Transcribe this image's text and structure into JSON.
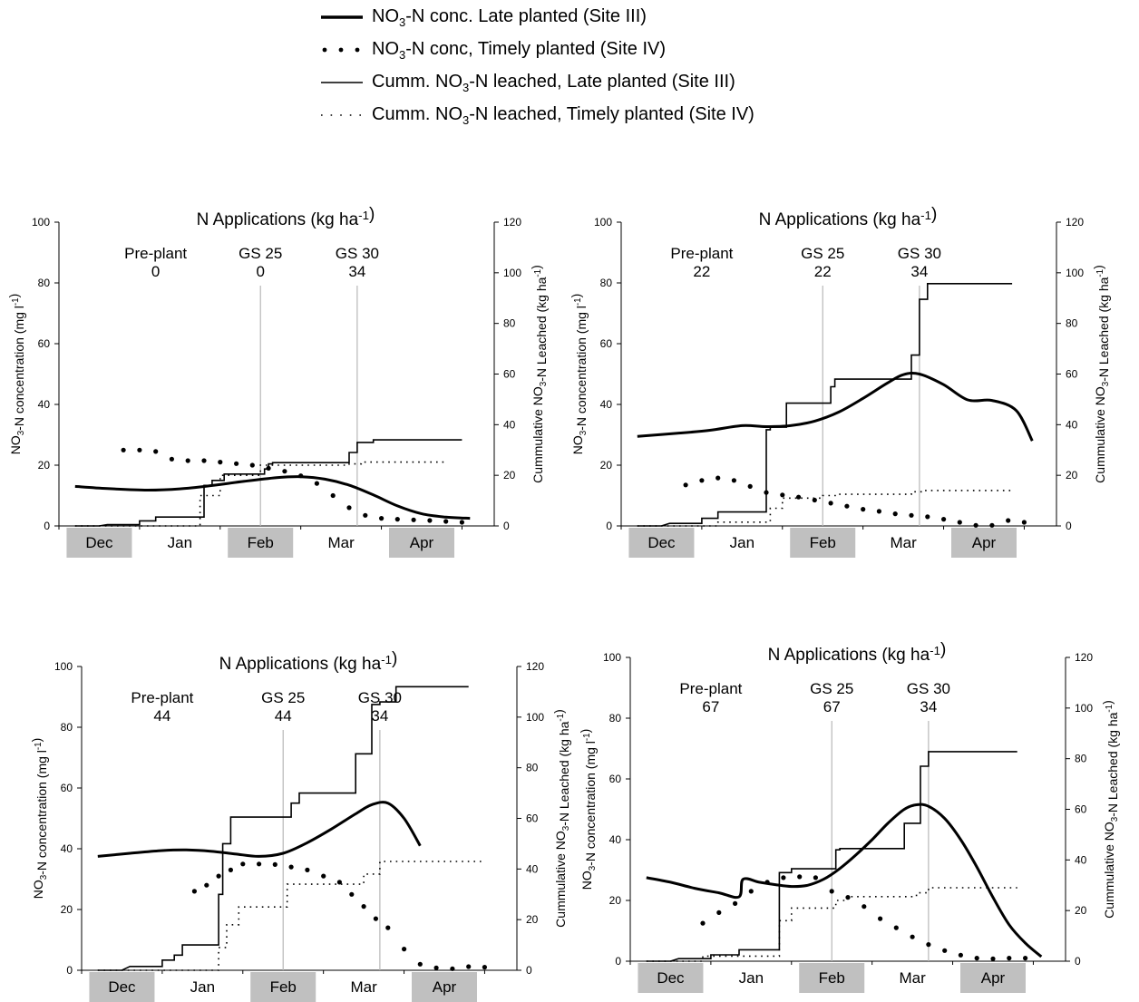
{
  "legend": {
    "items": [
      {
        "key": "conc_late",
        "label": "NO3-N conc. Late planted (Site III)",
        "style": "thick"
      },
      {
        "key": "conc_timely",
        "label": "NO3-N conc, Timely planted (Site IV)",
        "style": "bigdots"
      },
      {
        "key": "cumm_late",
        "label": "Cumm. NO3-N leached, Late planted (Site III)",
        "style": "thin"
      },
      {
        "key": "cumm_timely",
        "label": "Cumm. NO3-N leached, Timely planted (Site IV)",
        "style": "smalldots"
      }
    ]
  },
  "axis_text": {
    "y_left": "NO3-N concentration (mg l-1)",
    "y_right": "Cummulative NO3-N Leached (kg ha-1)"
  },
  "chart_data": [
    {
      "type": "line",
      "title": "N Applications (kg ha-1)",
      "months": [
        "Dec",
        "Jan",
        "Feb",
        "Mar",
        "Apr"
      ],
      "left_ylim": [
        0,
        100
      ],
      "left_ticks": [
        0,
        20,
        40,
        60,
        80,
        100
      ],
      "right_ylim": [
        0,
        120
      ],
      "right_ticks": [
        0,
        20,
        40,
        60,
        80,
        100,
        120
      ],
      "applications": [
        {
          "name": "Pre-plant",
          "amount": "0",
          "x": 0.7,
          "line": false
        },
        {
          "name": "GS 25",
          "amount": "0",
          "x": 2.0,
          "line": true
        },
        {
          "name": "GS 30",
          "amount": "34",
          "x": 3.2,
          "line": true
        }
      ],
      "series": [
        {
          "key": "conc_late",
          "axis": "left",
          "style": "thick",
          "x": [
            -0.3,
            0.1,
            0.6,
            1.0,
            1.4,
            1.8,
            2.2,
            2.5,
            2.8,
            3.1,
            3.4,
            3.7,
            4.0,
            4.3,
            4.6
          ],
          "y": [
            13,
            12.3,
            11.8,
            12.2,
            13.3,
            14.7,
            15.9,
            16.2,
            15.4,
            13.4,
            10.2,
            6.6,
            4.0,
            2.9,
            2.5
          ]
        },
        {
          "key": "conc_timely",
          "axis": "left",
          "style": "bigdots",
          "x": [
            0.3,
            0.5,
            0.7,
            0.9,
            1.1,
            1.3,
            1.5,
            1.7,
            1.9,
            2.1,
            2.3,
            2.5,
            2.7,
            2.9,
            3.1,
            3.3,
            3.5,
            3.7,
            3.9,
            4.1,
            4.3,
            4.5
          ],
          "y": [
            25,
            25,
            24.5,
            22,
            21.5,
            21.5,
            21,
            20.5,
            20,
            19,
            18,
            16.5,
            14,
            10,
            6,
            3.5,
            2.5,
            2.2,
            2,
            1.8,
            1.5,
            1.2
          ]
        },
        {
          "key": "cumm_late",
          "axis": "right",
          "style": "thin",
          "x": [
            -0.3,
            0.0,
            0.1,
            0.5,
            0.5,
            0.7,
            0.7,
            1.3,
            1.3,
            1.4,
            1.4,
            1.55,
            1.55,
            2.05,
            2.05,
            2.1,
            2.1,
            2.15,
            2.15,
            3.1,
            3.1,
            3.2,
            3.2,
            3.4,
            3.4,
            4.5
          ],
          "y": [
            0,
            0,
            0.5,
            0.5,
            2,
            2,
            3.5,
            3.5,
            16,
            16,
            18,
            18,
            20.5,
            20.5,
            22.5,
            22.5,
            24.5,
            24.5,
            25,
            25,
            29,
            29,
            33,
            33,
            34,
            34
          ]
        },
        {
          "key": "cumm_timely",
          "axis": "right",
          "style": "smalldots",
          "x": [
            -0.3,
            1.25,
            1.25,
            1.5,
            1.5,
            2.0,
            2.0,
            3.1,
            3.1,
            3.25,
            3.25,
            4.3
          ],
          "y": [
            0,
            0,
            12,
            12,
            20,
            20,
            24,
            24,
            24.5,
            24.5,
            25.2,
            25.2
          ]
        }
      ]
    },
    {
      "type": "line",
      "title": "N Applications (kg ha-1)",
      "months": [
        "Dec",
        "Jan",
        "Feb",
        "Mar",
        "Apr"
      ],
      "left_ylim": [
        0,
        100
      ],
      "left_ticks": [
        0,
        20,
        40,
        60,
        80,
        100
      ],
      "right_ylim": [
        0,
        120
      ],
      "right_ticks": [
        0,
        20,
        40,
        60,
        80,
        100,
        120
      ],
      "applications": [
        {
          "name": "Pre-plant",
          "amount": "22",
          "x": 0.5,
          "line": false
        },
        {
          "name": "GS 25",
          "amount": "22",
          "x": 2.0,
          "line": true
        },
        {
          "name": "GS 30",
          "amount": "34",
          "x": 3.2,
          "line": true
        }
      ],
      "series": [
        {
          "key": "conc_late",
          "axis": "left",
          "style": "thick",
          "x": [
            -0.3,
            0.2,
            0.6,
            1.0,
            1.3,
            1.6,
            1.9,
            2.2,
            2.5,
            2.8,
            3.0,
            3.2,
            3.5,
            3.8,
            4.1,
            4.4,
            4.6
          ],
          "y": [
            29.5,
            30.5,
            31.5,
            33,
            32.7,
            33,
            34.5,
            37.5,
            42,
            47,
            49.8,
            50,
            46.5,
            41.5,
            41.3,
            38,
            28
          ]
        },
        {
          "key": "conc_timely",
          "axis": "left",
          "style": "bigdots",
          "x": [
            0.3,
            0.5,
            0.7,
            0.9,
            1.1,
            1.3,
            1.5,
            1.7,
            1.9,
            2.1,
            2.3,
            2.5,
            2.7,
            2.9,
            3.1,
            3.3,
            3.5,
            3.7,
            3.9,
            4.1,
            4.3,
            4.5
          ],
          "y": [
            13.5,
            15,
            15.8,
            15,
            13,
            11,
            10.2,
            9.5,
            8.5,
            7.5,
            6.5,
            5.5,
            4.8,
            4,
            3.5,
            3,
            2.2,
            1.2,
            0.2,
            0.2,
            1.8,
            1.2
          ]
        },
        {
          "key": "cumm_late",
          "axis": "right",
          "style": "thin",
          "x": [
            -0.3,
            0.0,
            0.1,
            0.5,
            0.5,
            0.7,
            0.7,
            1.3,
            1.3,
            1.35,
            1.35,
            1.55,
            1.55,
            2.1,
            2.1,
            2.15,
            2.15,
            2.3,
            2.3,
            3.1,
            3.1,
            3.2,
            3.2,
            3.3,
            3.3,
            4.35
          ],
          "y": [
            0,
            0,
            1,
            1,
            3,
            3,
            5.5,
            5.5,
            38,
            38,
            39,
            39,
            48.5,
            48.5,
            55,
            55,
            58,
            58,
            58,
            58,
            67.5,
            67.5,
            89.5,
            89.5,
            95.7,
            95.7
          ]
        },
        {
          "key": "cumm_timely",
          "axis": "right",
          "style": "smalldots",
          "x": [
            -0.3,
            0.7,
            0.7,
            1.35,
            1.35,
            1.5,
            1.5,
            2.0,
            2.0,
            2.2,
            2.2,
            3.1,
            3.1,
            3.25,
            3.25,
            4.35
          ],
          "y": [
            0,
            0,
            1.5,
            1.5,
            7,
            7,
            11,
            11,
            12,
            12,
            12.5,
            12.5,
            13.5,
            13.5,
            14,
            14
          ]
        }
      ]
    },
    {
      "type": "line",
      "title": "N Applications (kg ha-1)",
      "months": [
        "Dec",
        "Jan",
        "Feb",
        "Mar",
        "Apr"
      ],
      "left_ylim": [
        0,
        100
      ],
      "left_ticks": [
        0,
        20,
        40,
        60,
        80,
        100
      ],
      "right_ylim": [
        0,
        120
      ],
      "right_ticks": [
        0,
        20,
        40,
        60,
        80,
        100,
        120
      ],
      "applications": [
        {
          "name": "Pre-plant",
          "amount": "44",
          "x": 0.5,
          "line": false
        },
        {
          "name": "GS 25",
          "amount": "44",
          "x": 2.0,
          "line": true
        },
        {
          "name": "GS 30",
          "amount": "34",
          "x": 3.2,
          "line": true
        }
      ],
      "series": [
        {
          "key": "conc_late",
          "axis": "left",
          "style": "thick",
          "x": [
            -0.3,
            0.1,
            0.5,
            0.8,
            1.1,
            1.4,
            1.7,
            2.0,
            2.3,
            2.6,
            2.9,
            3.1,
            3.3,
            3.5,
            3.7
          ],
          "y": [
            37.5,
            38.5,
            39.4,
            39.6,
            39.2,
            38.3,
            37.5,
            38.5,
            42,
            46.5,
            51.5,
            54.5,
            55,
            50,
            41
          ]
        },
        {
          "key": "conc_timely",
          "axis": "left",
          "style": "bigdots",
          "x": [
            0.9,
            1.05,
            1.2,
            1.35,
            1.5,
            1.7,
            1.9,
            2.1,
            2.3,
            2.5,
            2.7,
            2.85,
            3.0,
            3.15,
            3.3,
            3.5,
            3.7,
            3.9,
            4.1,
            4.3,
            4.5
          ],
          "y": [
            26,
            28,
            31,
            33,
            35,
            35,
            34.8,
            34,
            33,
            31,
            29,
            25,
            21,
            17,
            14,
            7,
            2,
            0.8,
            0.5,
            1.2,
            1
          ]
        },
        {
          "key": "cumm_late",
          "axis": "right",
          "style": "thin",
          "x": [
            -0.3,
            0.0,
            0.1,
            0.5,
            0.5,
            0.65,
            0.65,
            0.75,
            0.75,
            1.2,
            1.2,
            1.25,
            1.25,
            1.35,
            1.35,
            2.1,
            2.1,
            2.2,
            2.2,
            2.9,
            2.9,
            3.1,
            3.1,
            3.2,
            3.2,
            3.4,
            3.4,
            4.3
          ],
          "y": [
            0,
            0,
            1.5,
            1.5,
            4,
            4,
            6,
            6,
            10,
            10,
            30,
            30,
            50,
            50,
            60.5,
            60.5,
            66,
            66,
            70,
            70,
            85.5,
            85.5,
            105,
            105,
            106,
            106,
            112,
            112
          ]
        },
        {
          "key": "cumm_timely",
          "axis": "right",
          "style": "smalldots",
          "x": [
            -0.3,
            1.2,
            1.2,
            1.3,
            1.3,
            1.45,
            1.45,
            2.05,
            2.05,
            2.2,
            2.2,
            3.0,
            3.0,
            3.2,
            3.2,
            4.5
          ],
          "y": [
            0,
            0,
            9,
            9,
            18,
            18,
            25,
            25,
            34,
            34,
            34,
            34,
            38,
            38,
            43,
            43
          ]
        }
      ]
    },
    {
      "type": "line",
      "title": "N Applications (kg ha-1)",
      "months": [
        "Dec",
        "Jan",
        "Feb",
        "Mar",
        "Apr"
      ],
      "left_ylim": [
        0,
        100
      ],
      "left_ticks": [
        0,
        20,
        40,
        60,
        80,
        100
      ],
      "right_ylim": [
        0,
        120
      ],
      "right_ticks": [
        0,
        20,
        40,
        60,
        80,
        100,
        120
      ],
      "applications": [
        {
          "name": "Pre-plant",
          "amount": "67",
          "x": 0.5,
          "line": false
        },
        {
          "name": "GS 25",
          "amount": "67",
          "x": 2.0,
          "line": true
        },
        {
          "name": "GS 30",
          "amount": "34",
          "x": 3.2,
          "line": true
        }
      ],
      "series": [
        {
          "key": "conc_late",
          "axis": "left",
          "style": "thick",
          "x": [
            -0.3,
            0.0,
            0.3,
            0.6,
            0.85,
            0.9,
            1.1,
            1.3,
            1.5,
            1.7,
            1.9,
            2.1,
            2.3,
            2.5,
            2.7,
            2.9,
            3.05,
            3.2,
            3.4,
            3.6,
            3.8,
            4.0,
            4.2,
            4.4,
            4.6
          ],
          "y": [
            27.5,
            26,
            24,
            22.5,
            21.2,
            27,
            26,
            25.2,
            24.6,
            25,
            27,
            30.5,
            35,
            40,
            45.5,
            50,
            51.5,
            51,
            47,
            40,
            31,
            21,
            12,
            6,
            1.5
          ]
        },
        {
          "key": "conc_timely",
          "axis": "left",
          "style": "bigdots",
          "x": [
            0.4,
            0.6,
            0.8,
            1.0,
            1.2,
            1.4,
            1.6,
            1.8,
            2.0,
            2.2,
            2.4,
            2.6,
            2.8,
            3.0,
            3.2,
            3.4,
            3.6,
            3.8,
            4.0,
            4.2,
            4.4
          ],
          "y": [
            12.5,
            16,
            19,
            23,
            26,
            27.5,
            27.8,
            27.5,
            23,
            21,
            18,
            14,
            11,
            8,
            5.5,
            3.5,
            2,
            1,
            0.8,
            1,
            1
          ]
        },
        {
          "key": "cumm_late",
          "axis": "right",
          "style": "thin",
          "x": [
            -0.3,
            0.0,
            0.1,
            0.5,
            0.5,
            0.85,
            0.85,
            1.35,
            1.35,
            1.5,
            1.5,
            2.05,
            2.05,
            2.1,
            2.1,
            2.9,
            2.9,
            3.1,
            3.1,
            3.2,
            3.2,
            3.35,
            3.35,
            4.3
          ],
          "y": [
            0,
            0,
            1,
            1,
            2.5,
            2.5,
            4.5,
            4.5,
            35,
            35,
            36.5,
            36.5,
            44,
            44,
            44.5,
            44.5,
            54.5,
            54.5,
            77,
            77,
            82.8,
            82.8,
            82.8,
            82.8
          ]
        },
        {
          "key": "cumm_timely",
          "axis": "right",
          "style": "smalldots",
          "x": [
            -0.3,
            0.4,
            0.4,
            1.35,
            1.35,
            1.5,
            1.5,
            2.05,
            2.05,
            2.2,
            2.2,
            3.05,
            3.05,
            3.2,
            3.2,
            4.3
          ],
          "y": [
            0,
            0,
            2,
            2,
            16,
            16,
            21,
            21,
            24,
            24,
            25.5,
            25.5,
            27,
            27,
            29,
            29
          ]
        }
      ]
    }
  ]
}
